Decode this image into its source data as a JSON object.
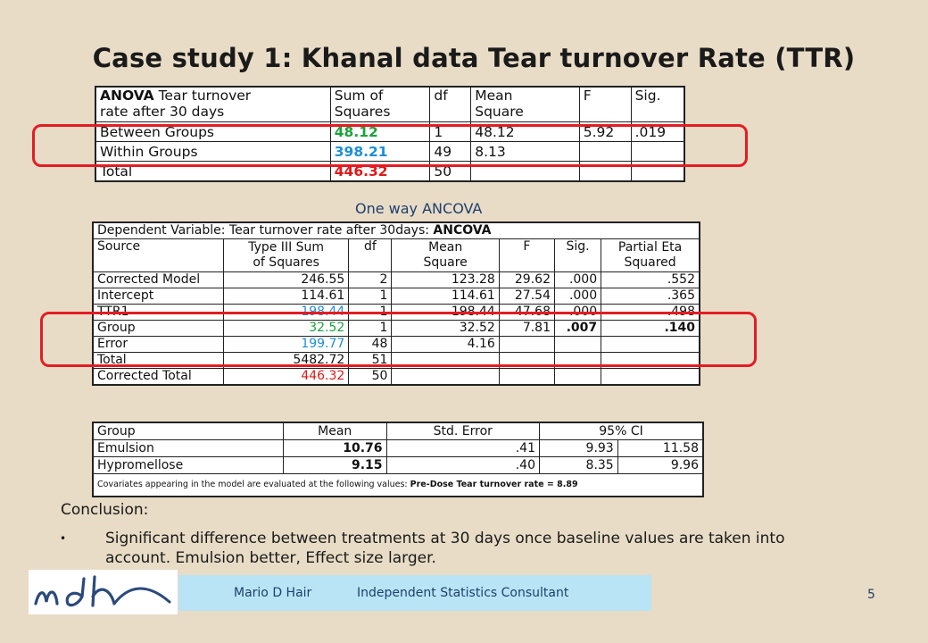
{
  "title": "Case study 1: Khanal data Tear turnover Rate (TTR)",
  "anova": {
    "header": {
      "label_bold": "ANOVA",
      "label_rest": " Tear turnover",
      "label_line2": "rate after 30 days",
      "ss_line1": "Sum of",
      "ss_line2": "Squares",
      "df": "df",
      "ms_line1": "Mean",
      "ms_line2": "Square",
      "f": "F",
      "sig": "Sig."
    },
    "rows": [
      {
        "label": "Between Groups",
        "ss": "48.12",
        "df": "1",
        "ms": "48.12",
        "f": "5.92",
        "sig": ".019"
      },
      {
        "label": "Within Groups",
        "ss": "398.21",
        "df": "49",
        "ms": "8.13",
        "f": "",
        "sig": ""
      },
      {
        "label": "Total",
        "ss": "446.32",
        "df": "50",
        "ms": "",
        "f": "",
        "sig": ""
      }
    ]
  },
  "ancova_caption": "One way ANCOVA",
  "ancova": {
    "dependent_prefix": "Dependent Variable: Tear turnover rate after 30days: ",
    "dependent_bold": "ANCOVA",
    "header": {
      "source": "Source",
      "ss_line1": "Type III Sum",
      "ss_line2": "of Squares",
      "df": "df",
      "ms_line1": "Mean",
      "ms_line2": "Square",
      "f": "F",
      "sig": "Sig.",
      "eta_line1": "Partial Eta",
      "eta_line2": "Squared"
    },
    "rows": [
      {
        "source": "Corrected Model",
        "ss": "246.55",
        "df": "2",
        "ms": "123.28",
        "f": "29.62",
        "sig": ".000",
        "eta": ".552"
      },
      {
        "source": "Intercept",
        "ss": "114.61",
        "df": "1",
        "ms": "114.61",
        "f": "27.54",
        "sig": ".000",
        "eta": ".365"
      },
      {
        "source": "TTR1",
        "ss": "198.44",
        "df": "1",
        "ms": "198.44",
        "f": "47.68",
        "sig": ".000",
        "eta": ".498"
      },
      {
        "source": "Group",
        "ss": "32.52",
        "df": "1",
        "ms": "32.52",
        "f": "7.81",
        "sig": ".007",
        "eta": ".140"
      },
      {
        "source": "Error",
        "ss": "199.77",
        "df": "48",
        "ms": "4.16",
        "f": "",
        "sig": "",
        "eta": ""
      },
      {
        "source": "Total",
        "ss": "5482.72",
        "df": "51",
        "ms": "",
        "f": "",
        "sig": "",
        "eta": ""
      },
      {
        "source": "Corrected Total",
        "ss": "446.32",
        "df": "50",
        "ms": "",
        "f": "",
        "sig": "",
        "eta": ""
      }
    ]
  },
  "means": {
    "header": {
      "group": "Group",
      "mean": "Mean",
      "se": "Std. Error",
      "ci": "95% CI"
    },
    "rows": [
      {
        "group": "Emulsion",
        "mean": "10.76",
        "se": ".41",
        "lo": "9.93",
        "hi": "11.58"
      },
      {
        "group": "Hypromellose",
        "mean": "9.15",
        "se": ".40",
        "lo": "8.35",
        "hi": "9.96"
      }
    ],
    "note_prefix": "Covariates appearing in the model are evaluated at the following values: ",
    "note_bold": "Pre-Dose Tear turnover rate = 8.89"
  },
  "conclusion": {
    "heading": "Conclusion:",
    "bullet": "•",
    "text": "Significant difference between treatments at 30 days once baseline values are taken into account. Emulsion better, Effect size larger."
  },
  "footer": {
    "logo_text": "mdh",
    "author": "Mario D Hair",
    "role": "Independent Statistics Consultant",
    "page": "5"
  },
  "colors": {
    "background": "#e8dcc6",
    "highlight_oval": "#e41c23",
    "green_value": "#1aa33a",
    "blue_value": "#1c8fd8",
    "red_value": "#e01818",
    "footer_band": "#b9e4f5",
    "accent_text": "#1f3f6e"
  }
}
